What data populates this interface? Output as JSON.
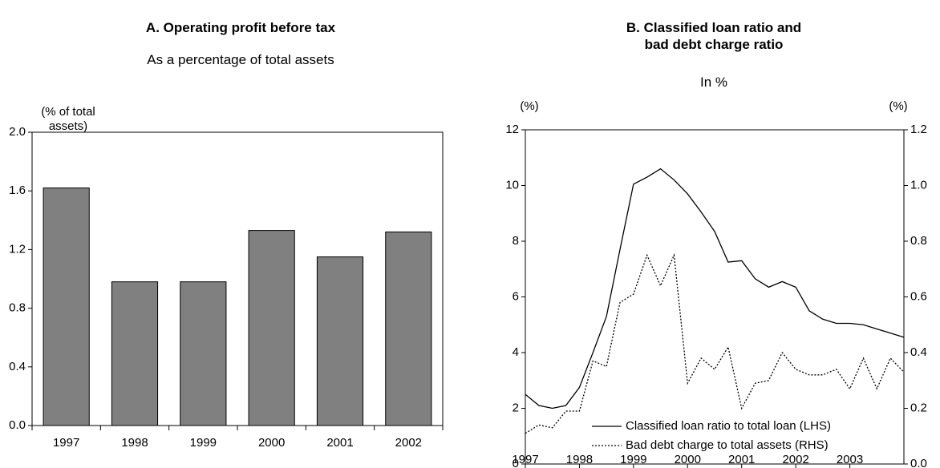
{
  "chart_data": [
    {
      "type": "bar",
      "title": "A. Operating profit before tax",
      "subtitle": "As a percentage of total assets",
      "y_label": "(% of total assets)",
      "categories": [
        "1997",
        "1998",
        "1999",
        "2000",
        "2001",
        "2002"
      ],
      "values": [
        1.62,
        0.98,
        0.98,
        1.33,
        1.15,
        1.32
      ],
      "color": "#808080",
      "ylim": [
        0,
        2
      ],
      "yticks": [
        {
          "value": 0,
          "label": "0.0"
        },
        0.4,
        0.8,
        1.2,
        1.6,
        {
          "value": 2,
          "label": "2.0"
        }
      ]
    },
    {
      "type": "line",
      "title": "B. Classified loan ratio and bad debt charge ratio",
      "subtitle": "In %",
      "y_label": "(%)",
      "y2_label": "(%)",
      "x": [
        1997,
        1997.25,
        1997.5,
        1997.75,
        1998,
        1998.25,
        1998.5,
        1998.75,
        1999,
        1999.25,
        1999.5,
        1999.75,
        2000,
        2000.25,
        2000.5,
        2000.75,
        2001,
        2001.25,
        2001.5,
        2001.75,
        2002,
        2002.25,
        2002.5,
        2002.75,
        2003,
        2003.25,
        2003.5,
        2003.75,
        2004
      ],
      "xlim": [
        1997,
        2004
      ],
      "xticks": [
        1997,
        1998,
        1999,
        2000,
        2001,
        2002,
        2003
      ],
      "ylim": [
        0,
        12
      ],
      "yticks": [
        0,
        2,
        4,
        6,
        8,
        10,
        12
      ],
      "y2lim": [
        0,
        1.2
      ],
      "y2ticks": [
        {
          "value": 0,
          "label": "0.0"
        },
        0.2,
        0.4,
        0.6,
        0.8,
        {
          "value": 1,
          "label": "1.0"
        },
        1.2
      ],
      "series": [
        {
          "name": "Classified loan ratio to total loan (LHS)",
          "color": "#000000",
          "dash": "solid",
          "values": [
            2.5,
            2.1,
            2.0,
            2.1,
            2.75,
            4.0,
            5.3,
            7.7,
            10.05,
            10.3,
            10.6,
            10.2,
            9.7,
            9.05,
            8.35,
            7.25,
            7.3,
            6.65,
            6.35,
            6.55,
            6.35,
            5.5,
            5.2,
            5.05,
            5.05,
            5.0,
            4.85,
            4.7,
            4.55
          ]
        },
        {
          "name": "Bad debt charge to total assets (RHS)",
          "color": "#000000",
          "dash": "dotted",
          "axis": "y2",
          "values": [
            0.11,
            0.14,
            0.13,
            0.19,
            0.19,
            0.37,
            0.35,
            0.58,
            0.61,
            0.75,
            0.64,
            0.75,
            0.29,
            0.38,
            0.34,
            0.42,
            0.2,
            0.29,
            0.3,
            0.4,
            0.34,
            0.32,
            0.32,
            0.34,
            0.27,
            0.38,
            0.27,
            0.38,
            0.33
          ]
        }
      ]
    }
  ]
}
